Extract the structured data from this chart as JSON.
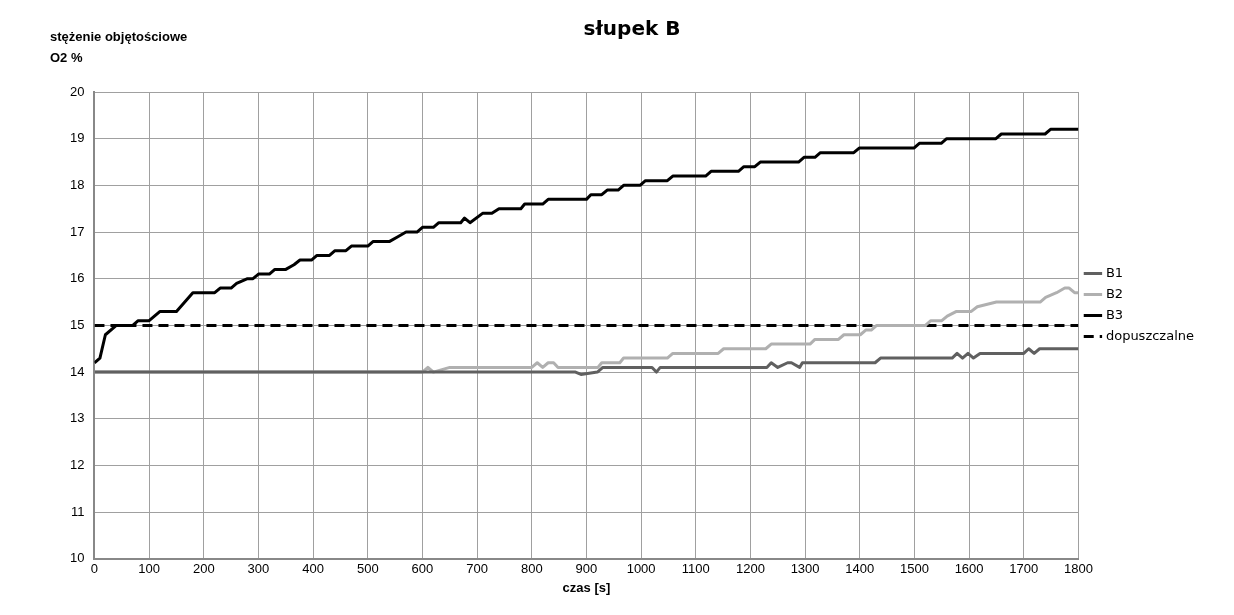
{
  "chart_data": {
    "type": "line",
    "title": "słupek B",
    "xlabel": "czas [s]",
    "ylabel": "stężenie objętościowe O2 %",
    "xlim": [
      0,
      1800
    ],
    "xticks": [
      0,
      100,
      200,
      300,
      400,
      500,
      600,
      700,
      800,
      900,
      1000,
      1100,
      1200,
      1300,
      1400,
      1500,
      1600,
      1700,
      1800
    ],
    "ylim": [
      10,
      20
    ],
    "yticks": [
      10,
      11,
      12,
      13,
      14,
      15,
      16,
      17,
      18,
      19,
      20
    ],
    "grid": true,
    "legend": "right",
    "marker": "none",
    "series": [
      {
        "name": "B1",
        "color": "#606060",
        "x": [
          0,
          600,
          620,
          880,
          890,
          920,
          930,
          1020,
          1028,
          1035,
          1230,
          1238,
          1250,
          1268,
          1275,
          1290,
          1295,
          1428,
          1438,
          1569,
          1578,
          1588,
          1598,
          1608,
          1620,
          1700,
          1709,
          1719,
          1729,
          1800
        ],
        "values": [
          14.0,
          14.0,
          14.0,
          14.0,
          13.95,
          14.0,
          14.1,
          14.1,
          14.0,
          14.1,
          14.1,
          14.2,
          14.1,
          14.2,
          14.2,
          14.1,
          14.2,
          14.2,
          14.3,
          14.3,
          14.4,
          14.3,
          14.4,
          14.3,
          14.4,
          14.4,
          14.5,
          14.4,
          14.5,
          14.5
        ]
      },
      {
        "name": "B2",
        "color": "#b0b0b0",
        "x": [
          0,
          600,
          610,
          620,
          650,
          800,
          810,
          820,
          830,
          840,
          848,
          921,
          928,
          961,
          968,
          1048,
          1058,
          1141,
          1151,
          1228,
          1238,
          1309,
          1318,
          1361,
          1371,
          1401,
          1411,
          1421,
          1431,
          1520,
          1530,
          1550,
          1560,
          1577,
          1604,
          1615,
          1650,
          1730,
          1740,
          1760,
          1775,
          1783,
          1793,
          1800
        ],
        "values": [
          14.0,
          14.0,
          14.1,
          14.0,
          14.1,
          14.1,
          14.2,
          14.1,
          14.2,
          14.2,
          14.1,
          14.1,
          14.2,
          14.2,
          14.3,
          14.3,
          14.4,
          14.4,
          14.5,
          14.5,
          14.6,
          14.6,
          14.7,
          14.7,
          14.8,
          14.8,
          14.9,
          14.9,
          15.0,
          15.0,
          15.1,
          15.1,
          15.2,
          15.3,
          15.3,
          15.4,
          15.5,
          15.5,
          15.6,
          15.7,
          15.8,
          15.8,
          15.7,
          15.7
        ]
      },
      {
        "name": "B3",
        "color": "#000000",
        "x": [
          0,
          10,
          20,
          40,
          70,
          80,
          100,
          120,
          150,
          180,
          220,
          230,
          250,
          260,
          280,
          290,
          300,
          320,
          330,
          350,
          365,
          376,
          397,
          407,
          430,
          440,
          460,
          470,
          500,
          510,
          540,
          555,
          570,
          590,
          600,
          620,
          630,
          670,
          677,
          687,
          710,
          727,
          740,
          780,
          787,
          820,
          830,
          900,
          908,
          928,
          938,
          958,
          968,
          998,
          1008,
          1048,
          1058,
          1118,
          1128,
          1178,
          1188,
          1208,
          1218,
          1288,
          1298,
          1318,
          1328,
          1389,
          1399,
          1499,
          1509,
          1549,
          1559,
          1649,
          1659,
          1739,
          1749,
          1800
        ],
        "values": [
          14.2,
          14.3,
          14.8,
          15.0,
          15.0,
          15.1,
          15.1,
          15.3,
          15.3,
          15.7,
          15.7,
          15.8,
          15.8,
          15.9,
          16.0,
          16.0,
          16.1,
          16.1,
          16.2,
          16.2,
          16.3,
          16.4,
          16.4,
          16.5,
          16.5,
          16.6,
          16.6,
          16.7,
          16.7,
          16.8,
          16.8,
          16.9,
          17.0,
          17.0,
          17.1,
          17.1,
          17.2,
          17.2,
          17.3,
          17.2,
          17.4,
          17.4,
          17.5,
          17.5,
          17.6,
          17.6,
          17.7,
          17.7,
          17.8,
          17.8,
          17.9,
          17.9,
          18.0,
          18.0,
          18.1,
          18.1,
          18.2,
          18.2,
          18.3,
          18.3,
          18.4,
          18.4,
          18.5,
          18.5,
          18.6,
          18.6,
          18.7,
          18.7,
          18.8,
          18.8,
          18.9,
          18.9,
          19.0,
          19.0,
          19.1,
          19.1,
          19.2,
          19.2
        ]
      },
      {
        "name": "dopuszczalne",
        "color": "#000000",
        "line_style": "dashed",
        "x": [
          0,
          1800
        ],
        "values": [
          15,
          15
        ]
      }
    ]
  }
}
